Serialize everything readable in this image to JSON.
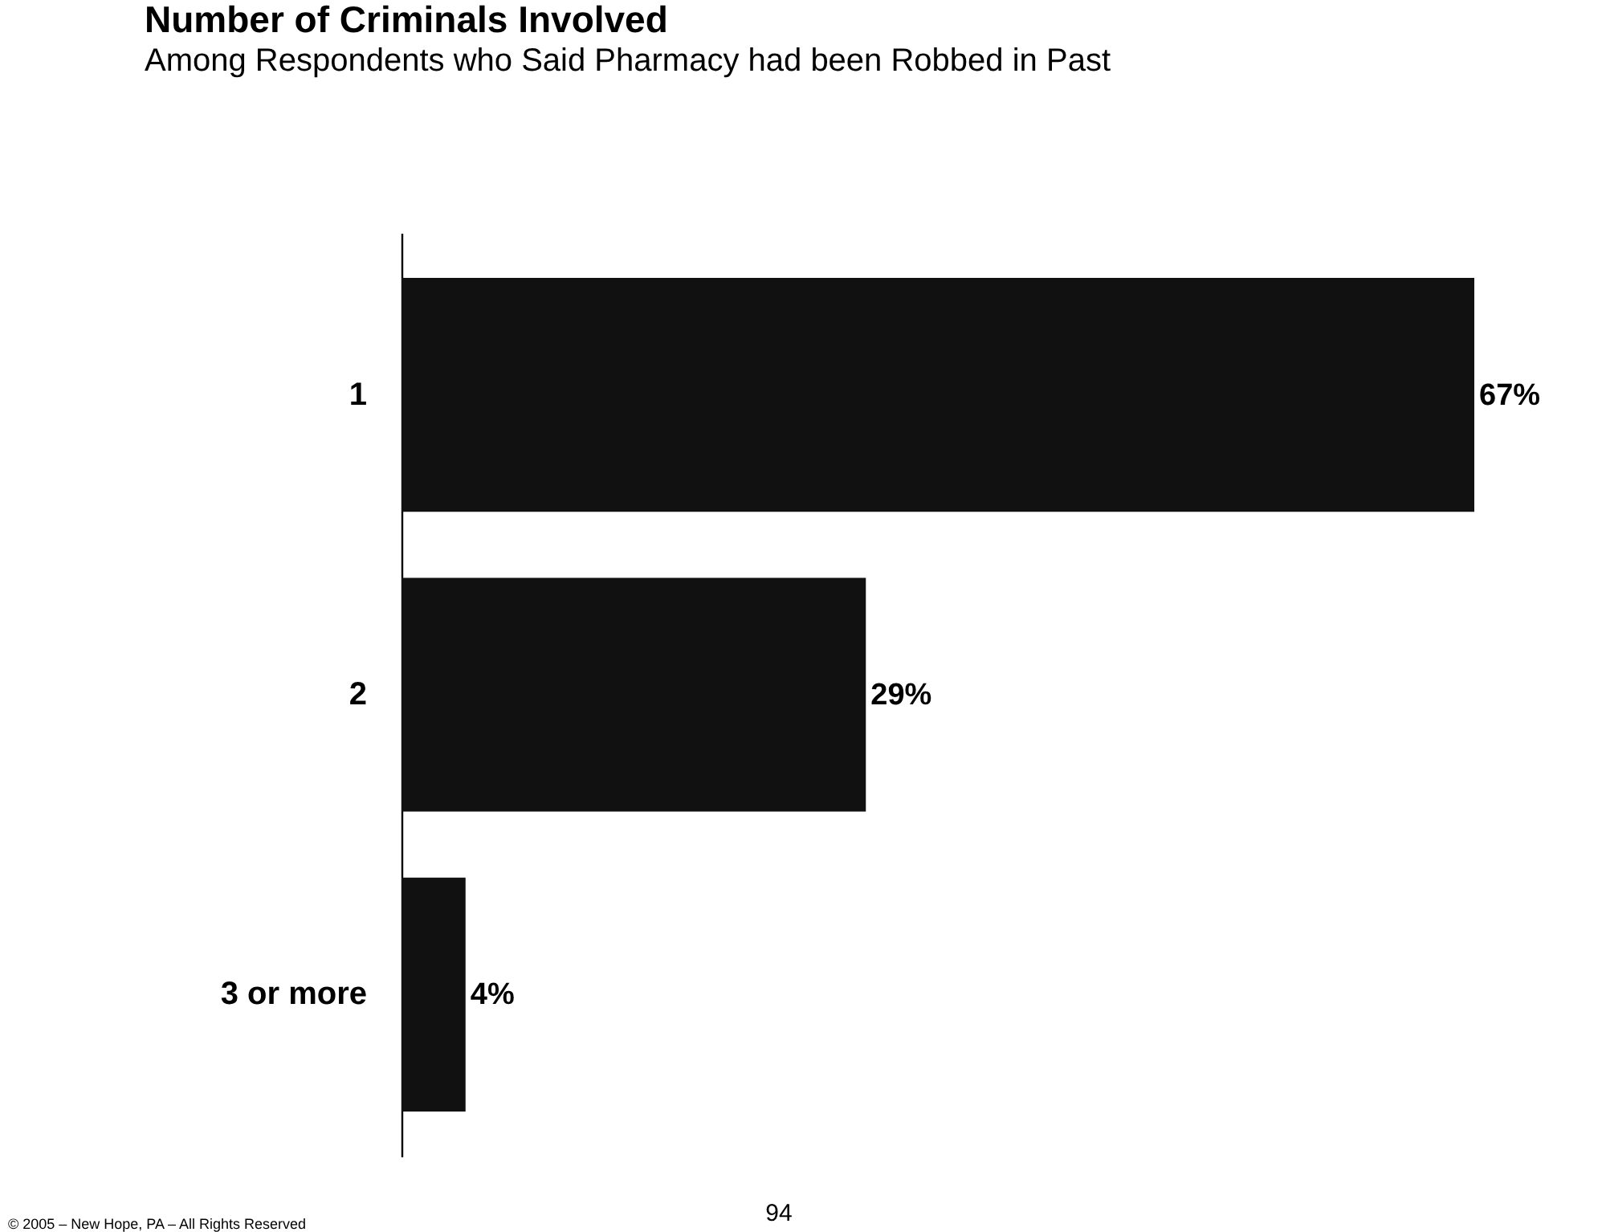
{
  "chart_data": {
    "type": "bar",
    "orientation": "horizontal",
    "title": "Number of Criminals Involved",
    "subtitle": "Among Respondents who Said Pharmacy had been Robbed in Past",
    "categories": [
      "1",
      "2",
      "3 or more"
    ],
    "series": [
      {
        "color": "#111111",
        "values": [
          67,
          29,
          4
        ],
        "value_labels": [
          "67%",
          "29%",
          "4%"
        ]
      }
    ],
    "annotations": [
      "94",
      "© 2005 – New Hope, PA – All Rights Reserved"
    ],
    "grid": false
  }
}
